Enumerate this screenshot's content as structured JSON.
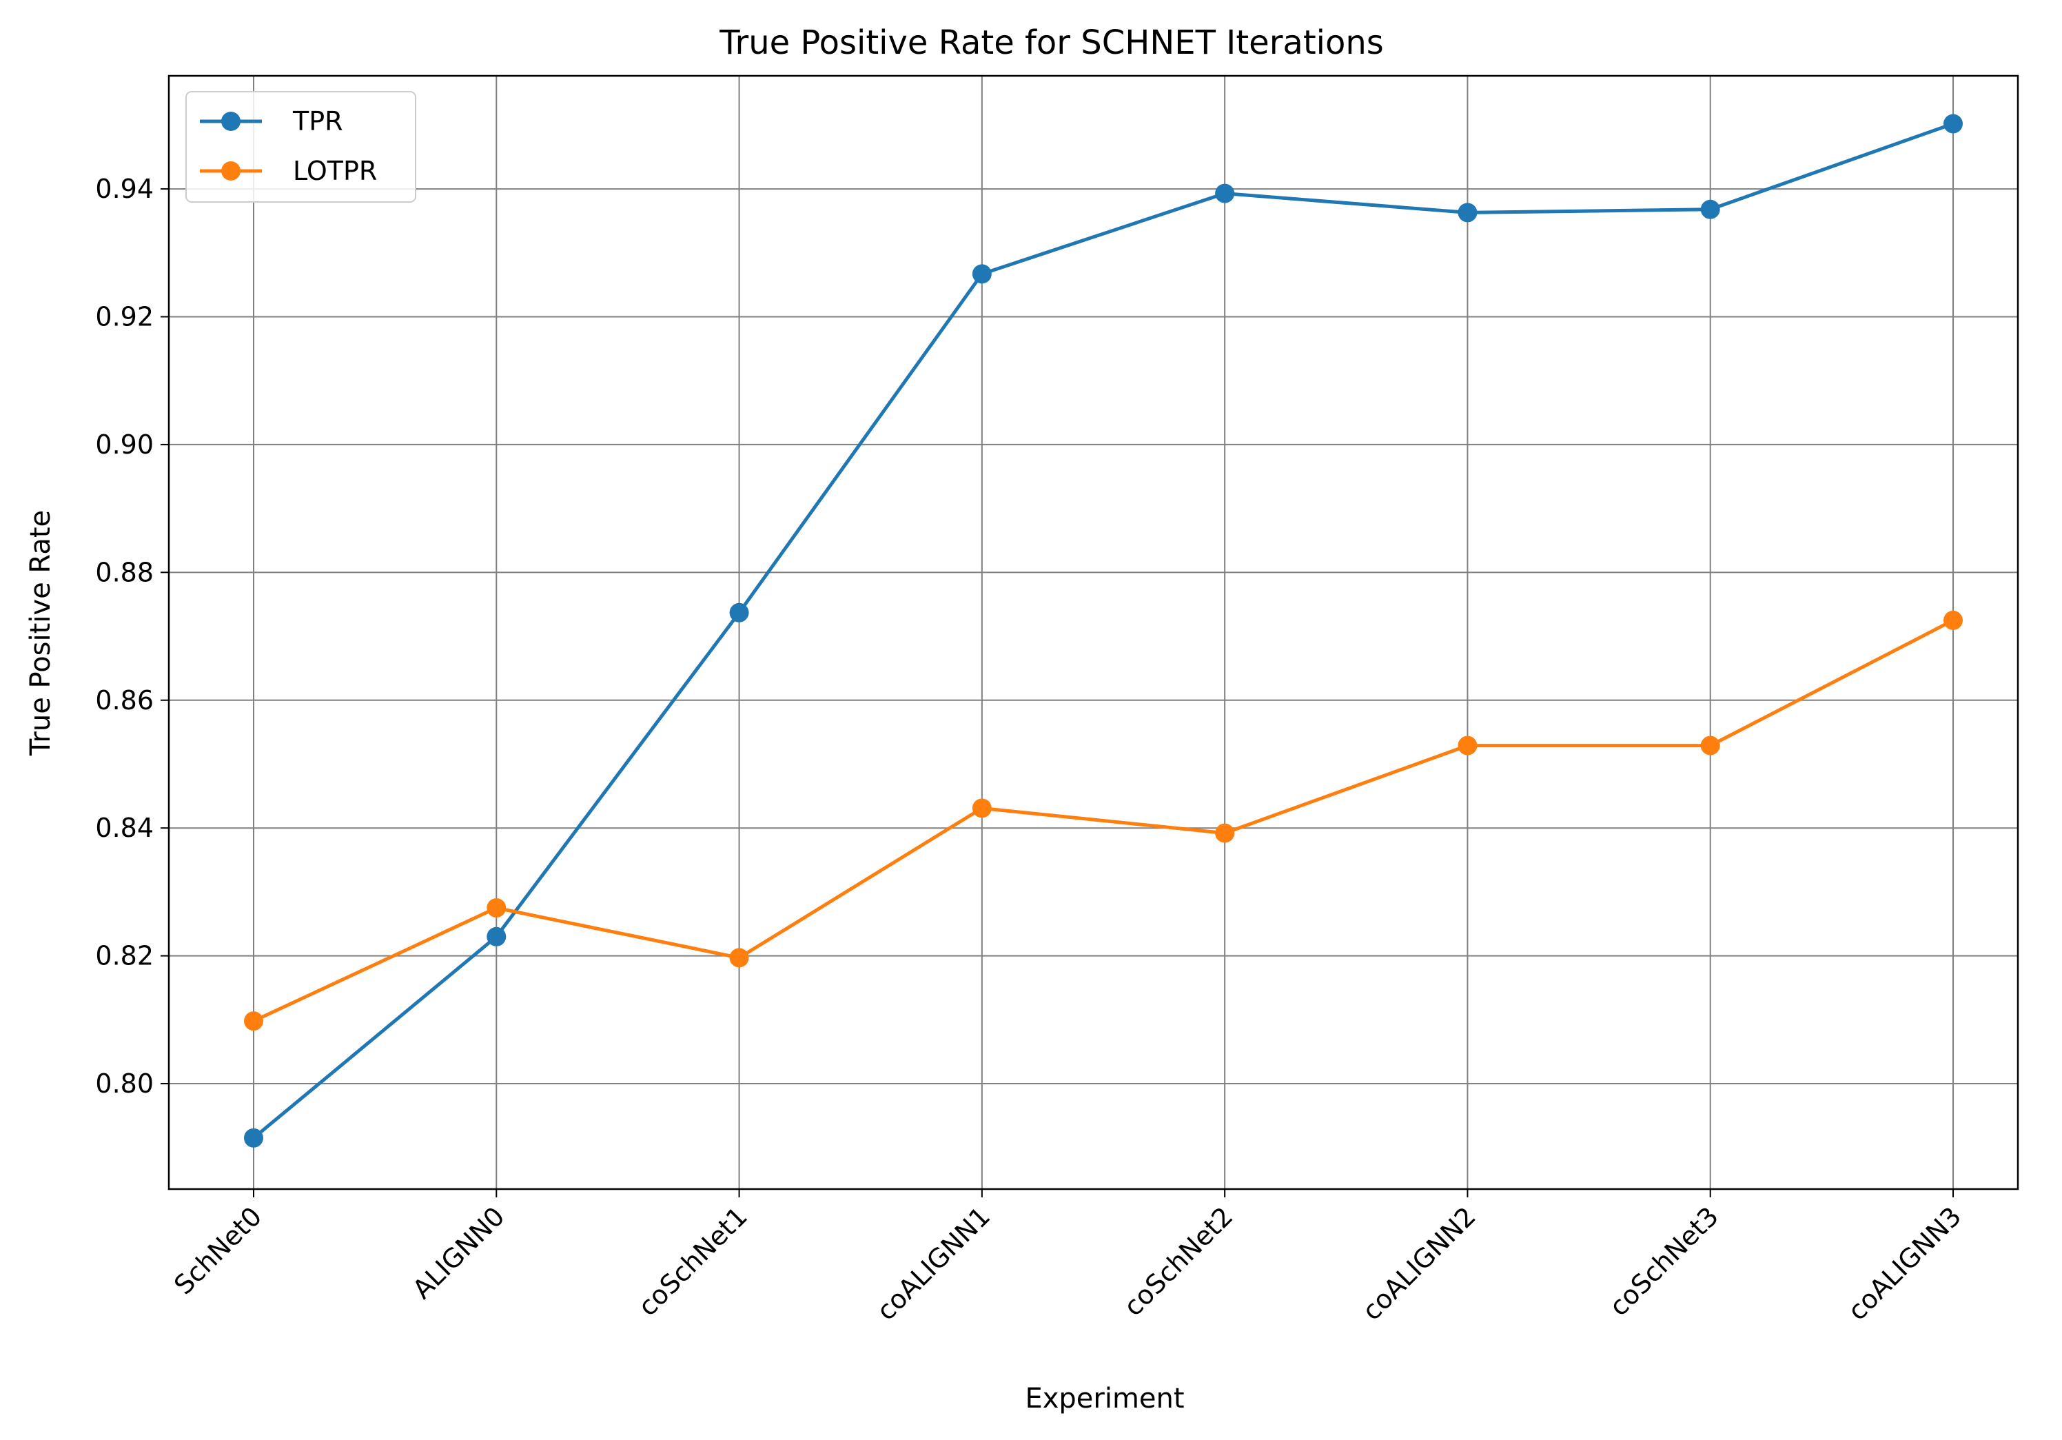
{
  "chart_data": {
    "type": "line",
    "title": "True Positive Rate for SCHNET Iterations",
    "xlabel": "Experiment",
    "ylabel": "True Positive Rate",
    "categories": [
      "SchNet0",
      "ALIGNN0",
      "coSchNet1",
      "coALIGNN1",
      "coSchNet2",
      "coALIGNN2",
      "coSchNet3",
      "coALIGNN3"
    ],
    "series": [
      {
        "name": "TPR",
        "color": "#1f77b4",
        "values": [
          0.7915,
          0.823,
          0.8737,
          0.9267,
          0.9393,
          0.9363,
          0.9368,
          0.9502
        ]
      },
      {
        "name": "LOTPR",
        "color": "#ff7f0e",
        "values": [
          0.8098,
          0.8275,
          0.8197,
          0.8431,
          0.8392,
          0.8529,
          0.8529,
          0.8725
        ]
      }
    ],
    "ylim": [
      0.7835,
      0.9577
    ],
    "yticks": [
      "0.80",
      "0.82",
      "0.84",
      "0.86",
      "0.88",
      "0.90",
      "0.92",
      "0.94"
    ],
    "grid": true,
    "legend_position": "upper-left"
  }
}
